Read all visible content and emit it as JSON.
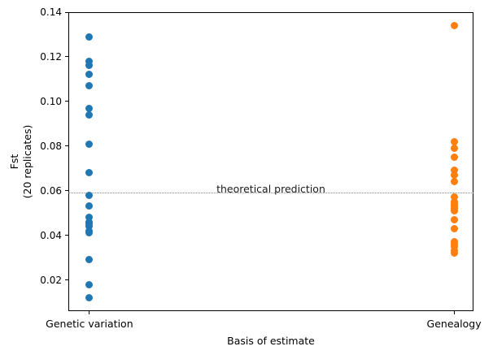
{
  "figure": {
    "background": "#ffffff",
    "spine_color": "#000000"
  },
  "chart_data": {
    "type": "scatter",
    "title": "",
    "xlabel": "Basis of estimate",
    "ylabel": "Fst (20 replicates)",
    "ylabel_lines": {
      "line1": "Fst",
      "line2": "(20 replicates)"
    },
    "categories": [
      "Genetic variation",
      "Genealogy"
    ],
    "series": [
      {
        "name": "Genetic variation",
        "color": "#1f77b4",
        "values": [
          0.129,
          0.118,
          0.116,
          0.112,
          0.107,
          0.097,
          0.094,
          0.081,
          0.068,
          0.058,
          0.053,
          0.048,
          0.046,
          0.045,
          0.044,
          0.042,
          0.041,
          0.029,
          0.018,
          0.012
        ]
      },
      {
        "name": "Genealogy",
        "color": "#ff7f0e",
        "values": [
          0.134,
          0.082,
          0.079,
          0.075,
          0.069,
          0.067,
          0.064,
          0.057,
          0.055,
          0.054,
          0.053,
          0.052,
          0.051,
          0.047,
          0.043,
          0.037,
          0.036,
          0.035,
          0.033,
          0.032
        ]
      }
    ],
    "y_ticks": [
      0.02,
      0.04,
      0.06,
      0.08,
      0.1,
      0.12,
      0.14
    ],
    "y_tick_labels": [
      "0.02",
      "0.04",
      "0.06",
      "0.08",
      "0.10",
      "0.12",
      "0.14"
    ],
    "ylim": [
      0.006,
      0.14
    ],
    "grid": false,
    "legend": "none",
    "reference_line": {
      "label": "theoretical prediction",
      "value": 0.059,
      "style": "dotted",
      "color": "#8a8a8a"
    }
  }
}
